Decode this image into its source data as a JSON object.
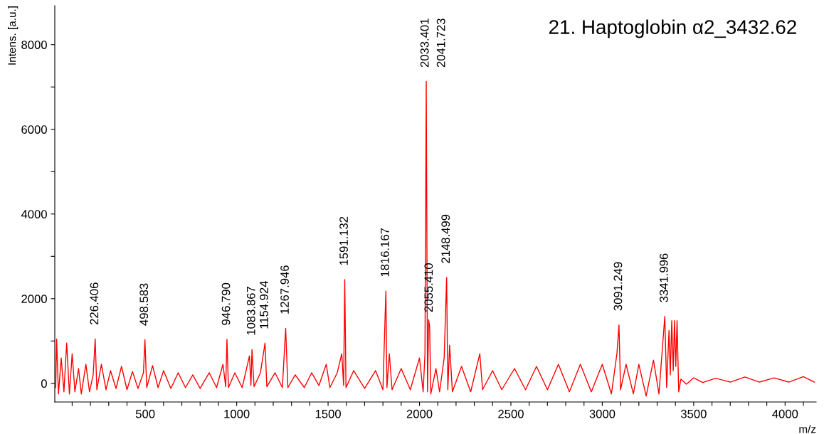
{
  "chart_data": {
    "type": "line",
    "title": "21. Haptoglobin α2_3432.62",
    "xlabel": "m/z",
    "ylabel": "Intens. [a.u.]",
    "xlim": [
      5,
      4170
    ],
    "ylim": [
      -440,
      8920
    ],
    "xticks": [
      {
        "value": 100,
        "label": null
      },
      {
        "value": 200,
        "label": null
      },
      {
        "value": 300,
        "label": null
      },
      {
        "value": 400,
        "label": null
      },
      500,
      {
        "value": 600,
        "label": null
      },
      {
        "value": 700,
        "label": null
      },
      {
        "value": 800,
        "label": null
      },
      {
        "value": 900,
        "label": null
      },
      1000,
      {
        "value": 1100,
        "label": null
      },
      {
        "value": 1200,
        "label": null
      },
      {
        "value": 1300,
        "label": null
      },
      {
        "value": 1400,
        "label": null
      },
      1500,
      {
        "value": 1600,
        "label": null
      },
      {
        "value": 1700,
        "label": null
      },
      {
        "value": 1800,
        "label": null
      },
      {
        "value": 1900,
        "label": null
      },
      2000,
      {
        "value": 2100,
        "label": null
      },
      {
        "value": 2200,
        "label": null
      },
      {
        "value": 2300,
        "label": null
      },
      {
        "value": 2400,
        "label": null
      },
      2500,
      {
        "value": 2600,
        "label": null
      },
      {
        "value": 2700,
        "label": null
      },
      {
        "value": 2800,
        "label": null
      },
      {
        "value": 2900,
        "label": null
      },
      3000,
      {
        "value": 3100,
        "label": null
      },
      {
        "value": 3200,
        "label": null
      },
      {
        "value": 3300,
        "label": null
      },
      {
        "value": 3400,
        "label": null
      },
      3500,
      {
        "value": 3600,
        "label": null
      },
      {
        "value": 3700,
        "label": null
      },
      {
        "value": 3800,
        "label": null
      },
      {
        "value": 3900,
        "label": null
      },
      4000,
      {
        "value": 4100,
        "label": null
      }
    ],
    "yticks": [
      0,
      {
        "value": 1000,
        "label": null
      },
      2000,
      {
        "value": 3000,
        "label": null
      },
      4000,
      {
        "value": 5000,
        "label": null
      },
      6000,
      {
        "value": 7000,
        "label": null
      },
      8000
    ],
    "grid": false,
    "series": [
      {
        "color": "#ff0000",
        "x": [
          10,
          15,
          25,
          40,
          55,
          70,
          85,
          100,
          115,
          135,
          150,
          175,
          195,
          215,
          226,
          235,
          260,
          285,
          310,
          340,
          370,
          400,
          430,
          460,
          490,
          498,
          508,
          540,
          570,
          600,
          640,
          680,
          720,
          760,
          800,
          850,
          890,
          925,
          940,
          946.79,
          955,
          990,
          1030,
          1070,
          1078,
          1083.867,
          1095,
          1130,
          1154.924,
          1165,
          1210,
          1250,
          1267.946,
          1280,
          1320,
          1370,
          1410,
          1450,
          1490,
          1510,
          1550,
          1575,
          1585,
          1591.132,
          1598,
          1640,
          1700,
          1760,
          1800,
          1816.167,
          1822,
          1835,
          1850,
          1900,
          1950,
          2000,
          2020,
          2030,
          2037,
          2044,
          2050,
          2055.41,
          2062,
          2090,
          2110,
          2135,
          2148.499,
          2155,
          2165,
          2180,
          2230,
          2280,
          2330,
          2345,
          2400,
          2450,
          2520,
          2580,
          2640,
          2700,
          2760,
          2820,
          2880,
          2940,
          3000,
          3050,
          3080,
          3091.249,
          3100,
          3130,
          3170,
          3200,
          3240,
          3280,
          3310,
          3330,
          3341.996,
          3352,
          3365,
          3372,
          3380,
          3388,
          3395,
          3402,
          3409,
          3418,
          3430,
          3460,
          3500,
          3550,
          3620,
          3700,
          3780,
          3860,
          3940,
          4020,
          4100,
          4160
        ],
        "values": [
          -100,
          1050,
          -250,
          600,
          -200,
          950,
          -250,
          700,
          -200,
          350,
          -250,
          450,
          -200,
          200,
          1050,
          -150,
          450,
          -150,
          300,
          -120,
          400,
          -150,
          280,
          -120,
          250,
          1030,
          -100,
          420,
          -100,
          300,
          -120,
          250,
          -100,
          200,
          -120,
          250,
          -100,
          450,
          -80,
          1040,
          -100,
          250,
          -100,
          650,
          -50,
          800,
          -80,
          250,
          950,
          -80,
          250,
          -100,
          1300,
          -100,
          200,
          -100,
          250,
          -50,
          450,
          -100,
          250,
          700,
          -50,
          2450,
          -100,
          300,
          -120,
          300,
          -150,
          2180,
          -100,
          700,
          -150,
          350,
          -150,
          600,
          -200,
          700,
          7130,
          -200,
          1500,
          1350,
          -250,
          350,
          -200,
          600,
          2500,
          -150,
          900,
          -200,
          400,
          -200,
          700,
          -150,
          300,
          -150,
          350,
          -150,
          400,
          -150,
          450,
          -200,
          450,
          -200,
          450,
          -250,
          700,
          1380,
          -150,
          450,
          -250,
          450,
          -300,
          550,
          -250,
          900,
          1580,
          -100,
          1250,
          200,
          1480,
          300,
          1480,
          400,
          1480,
          -200,
          100,
          -20,
          130,
          20,
          120,
          30,
          150,
          30,
          130,
          30,
          160,
          30
        ]
      }
    ],
    "annotations": [
      {
        "text": "226.406",
        "x": 226,
        "y": 1050
      },
      {
        "text": "498.583",
        "x": 498,
        "y": 1030
      },
      {
        "text": "946.790",
        "x": 946.79,
        "y": 1040
      },
      {
        "text": "1083.867",
        "x": 1083.867,
        "y": 800
      },
      {
        "text": "1154.924",
        "x": 1154.924,
        "y": 950
      },
      {
        "text": "1267.946",
        "x": 1267.946,
        "y": 1300
      },
      {
        "text": "1591.132",
        "x": 1591.132,
        "y": 2450
      },
      {
        "text": "1816.167",
        "x": 1816.167,
        "y": 2180
      },
      {
        "text": "2033.401",
        "x": 2033.401,
        "y": 7130
      },
      {
        "text": "2041.723",
        "x": 2041.723,
        "y": 7130
      },
      {
        "text": "2055.410",
        "x": 2055.41,
        "y": 1350
      },
      {
        "text": "2148.499",
        "x": 2148.499,
        "y": 2500
      },
      {
        "text": "3091.249",
        "x": 3091.249,
        "y": 1380
      },
      {
        "text": "3341.996",
        "x": 3341.996,
        "y": 1580
      }
    ]
  }
}
